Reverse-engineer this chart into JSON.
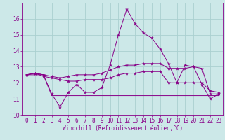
{
  "x": [
    0,
    1,
    2,
    3,
    4,
    5,
    6,
    7,
    8,
    9,
    10,
    11,
    12,
    13,
    14,
    15,
    16,
    17,
    18,
    19,
    20,
    21,
    22,
    23
  ],
  "line1": [
    12.5,
    12.6,
    12.5,
    11.3,
    10.5,
    11.4,
    11.9,
    11.4,
    11.4,
    11.7,
    13.1,
    15.0,
    16.6,
    15.7,
    15.1,
    14.8,
    14.1,
    13.2,
    12.0,
    13.1,
    13.0,
    11.9,
    11.0,
    11.3
  ],
  "line2": [
    12.5,
    12.6,
    12.4,
    12.3,
    12.2,
    12.1,
    12.1,
    12.2,
    12.2,
    12.2,
    12.3,
    12.5,
    12.6,
    12.6,
    12.7,
    12.7,
    12.7,
    12.0,
    12.0,
    12.0,
    12.0,
    12.0,
    11.5,
    11.4
  ],
  "line3": [
    12.5,
    12.6,
    12.5,
    12.4,
    12.3,
    12.4,
    12.5,
    12.5,
    12.5,
    12.6,
    12.8,
    13.0,
    13.1,
    13.1,
    13.2,
    13.2,
    13.2,
    12.9,
    12.9,
    12.9,
    13.0,
    12.9,
    11.3,
    11.3
  ],
  "line4": [
    12.5,
    12.5,
    12.5,
    11.2,
    11.2,
    11.2,
    11.2,
    11.2,
    11.2,
    11.2,
    11.2,
    11.2,
    11.2,
    11.2,
    11.2,
    11.2,
    11.2,
    11.2,
    11.2,
    11.2,
    11.2,
    11.2,
    11.2,
    11.2
  ],
  "line_color": "#880088",
  "bg_color": "#cce8e8",
  "grid_color": "#aad0d0",
  "ylim": [
    10,
    17
  ],
  "yticks": [
    10,
    11,
    12,
    13,
    14,
    15,
    16
  ],
  "xlim": [
    -0.5,
    23.5
  ],
  "xticks": [
    0,
    1,
    2,
    3,
    4,
    5,
    6,
    7,
    8,
    9,
    10,
    11,
    12,
    13,
    14,
    15,
    16,
    17,
    18,
    19,
    20,
    21,
    22,
    23
  ],
  "xlabel": "Windchill (Refroidissement éolien,°C)",
  "marker": "*",
  "marker_size": 3,
  "linewidth": 0.7,
  "tick_fontsize": 5.5,
  "xlabel_fontsize": 5.5
}
